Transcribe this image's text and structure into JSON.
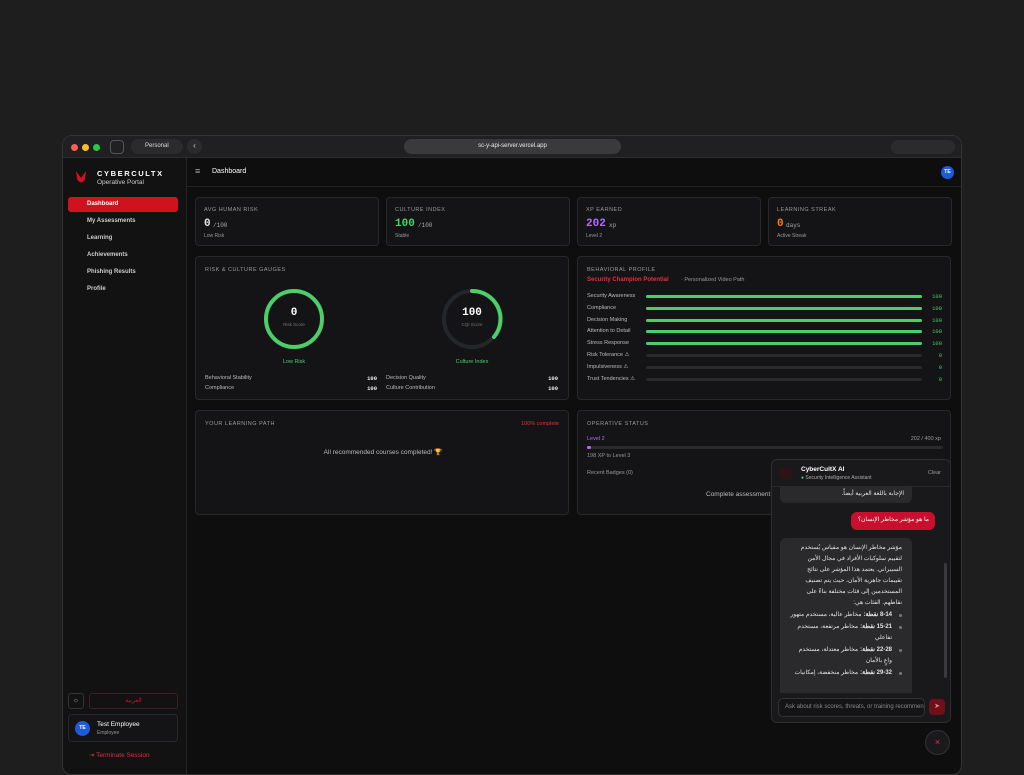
{
  "browser": {
    "profile": "Personal",
    "url": "sc-y-api-server.vercel.app"
  },
  "sidebar": {
    "brand": "CYBERCULTX",
    "subtitle": "Operative Portal",
    "nav": [
      "Dashboard",
      "My Assessments",
      "Learning",
      "Achievements",
      "Phishing Results",
      "Profile"
    ],
    "language": "العربية",
    "user": {
      "initials": "TE",
      "name": "Test Employee",
      "role": "Employee"
    },
    "logout": "Terminate Session"
  },
  "header": {
    "title": "Dashboard",
    "avatar": "TE"
  },
  "stats": [
    {
      "label": "AVG HUMAN RISK",
      "value": 0,
      "unit": "/100",
      "note": "Low Risk"
    },
    {
      "label": "CULTURE INDEX",
      "value": 100,
      "unit": "/100",
      "note": "Stable"
    },
    {
      "label": "XP EARNED",
      "value": 202,
      "unit": "xp",
      "note": "Level 2"
    },
    {
      "label": "LEARNING STREAK",
      "value": 0,
      "unit": "days",
      "note": "Active Streak"
    }
  ],
  "gauges": {
    "title": "RISK & CULTURE GAUGES",
    "items": [
      {
        "value": 0,
        "caption": "Risk Score",
        "label": "Low Risk"
      },
      {
        "value": 100,
        "caption": "CQI Score",
        "label": "Culture Index"
      }
    ],
    "metrics": [
      {
        "name": "Behavioral Stability",
        "value": 100
      },
      {
        "name": "Compliance",
        "value": 100
      },
      {
        "name": "Decision Quality",
        "value": 100
      },
      {
        "name": "Culture Contribution",
        "value": 100
      }
    ]
  },
  "profile": {
    "title": "BEHAVIORAL PROFILE",
    "tag": "Security Champion Potential",
    "path": "· Personalized Video Path",
    "traits": [
      {
        "name": "Security Awareness",
        "value": 100
      },
      {
        "name": "Compliance",
        "value": 100
      },
      {
        "name": "Decision Making",
        "value": 100
      },
      {
        "name": "Attention to Detail",
        "value": 100
      },
      {
        "name": "Stress Response",
        "value": 100
      },
      {
        "name": "Risk Tolerance ⚠",
        "value": 0
      },
      {
        "name": "Impulsiveness ⚠",
        "value": 0
      },
      {
        "name": "Trust Tendencies ⚠",
        "value": 0
      }
    ]
  },
  "learning": {
    "title": "YOUR LEARNING PATH",
    "progress": "100% complete",
    "message": "All recommended courses completed! 🏆"
  },
  "status": {
    "title": "OPERATIVE STATUS",
    "level": "Level 2",
    "xp": "202 / 400 xp",
    "remaining": "198 XP to Level 3",
    "badges": "Recent Badges (0)",
    "prompt": "Complete assessment"
  },
  "chat": {
    "title": "CyberCultX AI",
    "subtitle": "Security Intelligence Assistant",
    "clear": "Clear",
    "messages": [
      {
        "role": "assistant",
        "text": "الإجابة باللغة العربية أيضاً."
      },
      {
        "role": "user",
        "text": "ما هو مؤشر مخاطر الإنسان؟"
      },
      {
        "role": "assistant",
        "text": "مؤشر مخاطر الإنسان هو مقياس يُستخدم لتقييم سلوكيات الأفراد في مجال الأمن السيبراني. يعتمد هذا المؤشر على نتائج تقييمات جاهزية الأمان، حيث يتم تصنيف المستخدمين إلى فئات مختلفة بناءً على نقاطهم. الفئات هي:",
        "bullets": [
          {
            "range": "8-14 نقطة:",
            "text": "مخاطر عالية، مستخدم متهور"
          },
          {
            "range": "15-21 نقطة:",
            "text": "مخاطر مرتفعة، مستخدم تفاعلي"
          },
          {
            "range": "22-28 نقطة:",
            "text": "مخاطر معتدلة، مستخدم واعٍ بالأمان"
          },
          {
            "range": "29-32 نقطة:",
            "text": "مخاطر منخفضة، إمكانيات"
          }
        ]
      }
    ],
    "placeholder": "Ask about risk scores, threats, or training recommendations"
  }
}
